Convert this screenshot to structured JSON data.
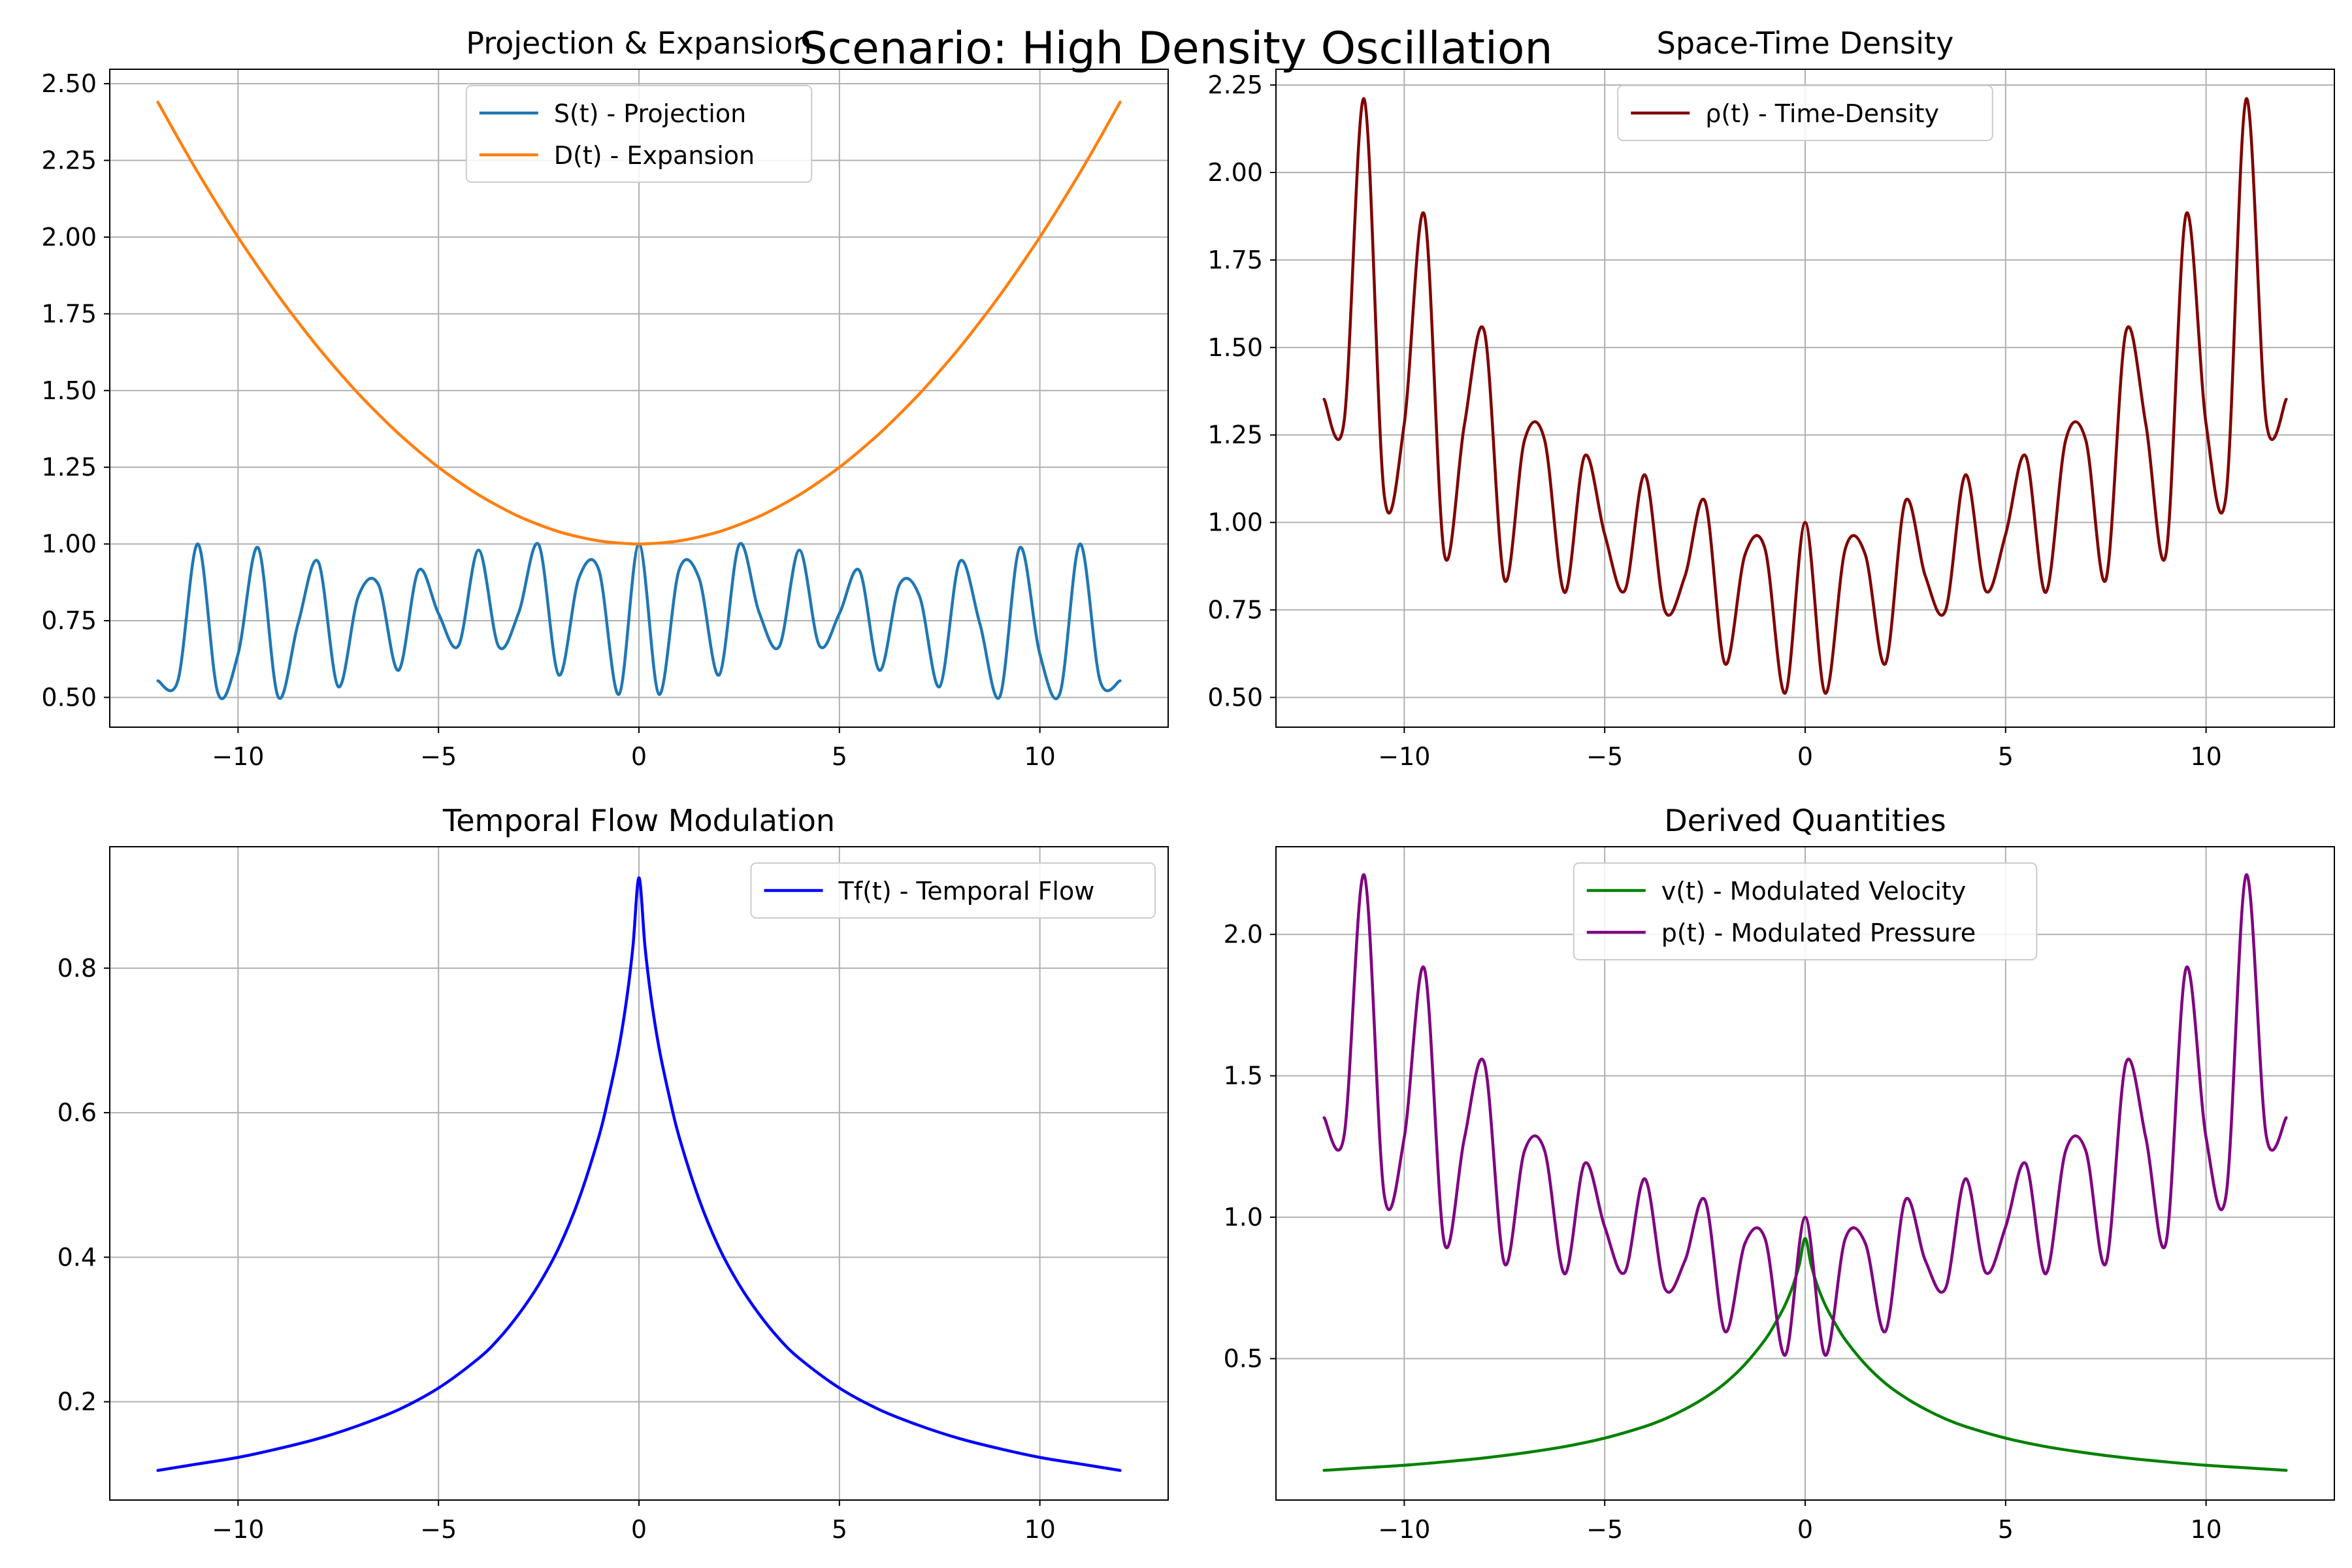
{
  "figure": {
    "suptitle": "Scenario: High Density Oscillation"
  },
  "chart_data": [
    {
      "type": "line",
      "title": "Projection & Expansion",
      "xlabel": "",
      "ylabel": "",
      "xlim": [
        -13.2,
        13.2
      ],
      "ylim": [
        0.403,
        2.547
      ],
      "xticks": [
        -10,
        -5,
        0,
        5,
        10
      ],
      "xtick_labels": [
        "−10",
        "−5",
        "0",
        "5",
        "10"
      ],
      "yticks": [
        0.5,
        0.75,
        1.0,
        1.25,
        1.5,
        1.75,
        2.0,
        2.25,
        2.5
      ],
      "ytick_labels": [
        "0.50",
        "0.75",
        "1.00",
        "1.25",
        "1.50",
        "1.75",
        "2.00",
        "2.25",
        "2.50"
      ],
      "grid": true,
      "legend": "upper center",
      "x_domain": [
        -12,
        12
      ],
      "series": [
        {
          "name": "S(t) - Projection",
          "color": "#1f77b4",
          "x": [
            -12.0,
            -11.5,
            -11.0,
            -10.5,
            -10.0,
            -9.5,
            -9.0,
            -8.5,
            -8.0,
            -7.5,
            -7.0,
            -6.5,
            -6.0,
            -5.5,
            -5.0,
            -4.5,
            -4.0,
            -3.5,
            -3.0,
            -2.5,
            -2.0,
            -1.5,
            -1.0,
            -0.5,
            0.0,
            0.5,
            1.0,
            1.5,
            2.0,
            2.5,
            3.0,
            3.5,
            4.0,
            4.5,
            5.0,
            5.5,
            6.0,
            6.5,
            7.0,
            7.5,
            8.0,
            8.5,
            9.0,
            9.5,
            10.0,
            10.5,
            11.0,
            11.5,
            12.0
          ],
          "values": [
            0.554,
            0.555,
            1.0,
            0.513,
            0.641,
            0.988,
            0.502,
            0.742,
            0.942,
            0.535,
            0.829,
            0.868,
            0.588,
            0.913,
            0.773,
            0.669,
            0.98,
            0.666,
            0.776,
            0.998,
            0.573,
            0.888,
            0.915,
            0.51,
            1.0,
            0.51,
            0.915,
            0.888,
            0.573,
            0.998,
            0.776,
            0.666,
            0.98,
            0.669,
            0.773,
            0.913,
            0.588,
            0.868,
            0.829,
            0.535,
            0.942,
            0.742,
            0.502,
            0.988,
            0.641,
            0.513,
            1.0,
            0.555,
            0.554
          ]
        },
        {
          "name": "D(t) - Expansion",
          "color": "#ff7f0e",
          "x": [
            -12.0,
            -11.5,
            -11.0,
            -10.5,
            -10.0,
            -9.5,
            -9.0,
            -8.5,
            -8.0,
            -7.5,
            -7.0,
            -6.5,
            -6.0,
            -5.5,
            -5.0,
            -4.5,
            -4.0,
            -3.5,
            -3.0,
            -2.5,
            -2.0,
            -1.5,
            -1.0,
            -0.5,
            0.0,
            0.5,
            1.0,
            1.5,
            2.0,
            2.5,
            3.0,
            3.5,
            4.0,
            4.5,
            5.0,
            5.5,
            6.0,
            6.5,
            7.0,
            7.5,
            8.0,
            8.5,
            9.0,
            9.5,
            10.0,
            10.5,
            11.0,
            11.5,
            12.0
          ],
          "values": [
            2.44,
            2.323,
            2.21,
            2.103,
            2.0,
            1.903,
            1.81,
            1.723,
            1.64,
            1.563,
            1.49,
            1.423,
            1.36,
            1.303,
            1.25,
            1.203,
            1.16,
            1.123,
            1.09,
            1.063,
            1.04,
            1.023,
            1.01,
            1.003,
            1.0,
            1.003,
            1.01,
            1.023,
            1.04,
            1.063,
            1.09,
            1.123,
            1.16,
            1.203,
            1.25,
            1.303,
            1.36,
            1.423,
            1.49,
            1.563,
            1.64,
            1.723,
            1.81,
            1.903,
            2.0,
            2.103,
            2.21,
            2.323,
            2.44
          ]
        }
      ]
    },
    {
      "type": "line",
      "title": "Space-Time Density",
      "xlabel": "",
      "ylabel": "",
      "xlim": [
        -13.2,
        13.2
      ],
      "ylim": [
        0.415,
        2.295
      ],
      "xticks": [
        -10,
        -5,
        0,
        5,
        10
      ],
      "xtick_labels": [
        "−10",
        "−5",
        "0",
        "5",
        "10"
      ],
      "yticks": [
        0.5,
        0.75,
        1.0,
        1.25,
        1.5,
        1.75,
        2.0,
        2.25
      ],
      "ytick_labels": [
        "0.50",
        "0.75",
        "1.00",
        "1.25",
        "1.50",
        "1.75",
        "2.00",
        "2.25"
      ],
      "grid": true,
      "legend": "upper center",
      "x_domain": [
        -12,
        12
      ],
      "series": [
        {
          "name": "ρ(t) - Time-Density",
          "color": "#800000",
          "x": [
            -12.0,
            -11.5,
            -11.0,
            -10.5,
            -10.0,
            -9.5,
            -9.0,
            -8.5,
            -8.0,
            -7.5,
            -7.0,
            -6.5,
            -6.0,
            -5.5,
            -5.0,
            -4.5,
            -4.0,
            -3.5,
            -3.0,
            -2.5,
            -2.0,
            -1.5,
            -1.0,
            -0.5,
            0.0,
            0.5,
            1.0,
            1.5,
            2.0,
            2.5,
            3.0,
            3.5,
            4.0,
            4.5,
            5.0,
            5.5,
            6.0,
            6.5,
            7.0,
            7.5,
            8.0,
            8.5,
            9.0,
            9.5,
            10.0,
            10.5,
            11.0,
            11.5,
            12.0
          ],
          "values": [
            1.352,
            1.289,
            2.21,
            1.079,
            1.282,
            1.88,
            0.909,
            1.279,
            1.545,
            0.836,
            1.235,
            1.236,
            0.8,
            1.19,
            0.966,
            0.805,
            1.136,
            0.748,
            0.846,
            1.061,
            0.596,
            0.908,
            0.924,
            0.512,
            1.0,
            0.512,
            0.924,
            0.908,
            0.596,
            1.061,
            0.846,
            0.748,
            1.136,
            0.805,
            0.966,
            1.19,
            0.8,
            1.236,
            1.235,
            0.836,
            1.545,
            1.279,
            0.909,
            1.88,
            1.282,
            1.079,
            2.21,
            1.289,
            1.352
          ]
        }
      ]
    },
    {
      "type": "line",
      "title": "Temporal Flow Modulation",
      "xlabel": "",
      "ylabel": "",
      "xlim": [
        -13.2,
        13.2
      ],
      "ylim": [
        0.064,
        0.968
      ],
      "xticks": [
        -10,
        -5,
        0,
        5,
        10
      ],
      "xtick_labels": [
        "−10",
        "−5",
        "0",
        "5",
        "10"
      ],
      "yticks": [
        0.2,
        0.4,
        0.6,
        0.8
      ],
      "ytick_labels": [
        "0.2",
        "0.4",
        "0.6",
        "0.8"
      ],
      "grid": true,
      "legend": "upper right",
      "x_domain": [
        -12,
        12
      ],
      "series": [
        {
          "name": "Tf(t) - Temporal Flow",
          "color": "#0000ff",
          "x": [
            -12.0,
            -11.0,
            -10.0,
            -9.0,
            -8.0,
            -7.0,
            -6.0,
            -5.0,
            -4.0,
            -3.5,
            -3.0,
            -2.5,
            -2.0,
            -1.5,
            -1.0,
            -0.75,
            -0.5,
            -0.3,
            -0.15,
            0.0,
            0.15,
            0.3,
            0.5,
            0.75,
            1.0,
            1.5,
            2.0,
            2.5,
            3.0,
            3.5,
            4.0,
            5.0,
            6.0,
            7.0,
            8.0,
            9.0,
            10.0,
            11.0,
            12.0
          ],
          "values": [
            0.105,
            0.114,
            0.123,
            0.135,
            0.149,
            0.167,
            0.189,
            0.219,
            0.26,
            0.287,
            0.321,
            0.362,
            0.413,
            0.48,
            0.567,
            0.624,
            0.69,
            0.76,
            0.83,
            0.925,
            0.83,
            0.76,
            0.69,
            0.624,
            0.567,
            0.48,
            0.413,
            0.362,
            0.321,
            0.287,
            0.26,
            0.219,
            0.189,
            0.167,
            0.149,
            0.135,
            0.123,
            0.114,
            0.105
          ]
        }
      ]
    },
    {
      "type": "line",
      "title": "Derived Quantities",
      "xlabel": "",
      "ylabel": "",
      "xlim": [
        -13.2,
        13.2
      ],
      "ylim": [
        0.0,
        2.31
      ],
      "xticks": [
        -10,
        -5,
        0,
        5,
        10
      ],
      "xtick_labels": [
        "−10",
        "−5",
        "0",
        "5",
        "10"
      ],
      "yticks": [
        0.5,
        1.0,
        1.5,
        2.0
      ],
      "ytick_labels": [
        "0.5",
        "1.0",
        "1.5",
        "2.0"
      ],
      "grid": true,
      "legend": "upper center",
      "x_domain": [
        -12,
        12
      ],
      "series": [
        {
          "name": "v(t) - Modulated Velocity",
          "color": "#008000",
          "x": [
            -12.0,
            -11.0,
            -10.0,
            -9.0,
            -8.0,
            -7.0,
            -6.0,
            -5.0,
            -4.0,
            -3.5,
            -3.0,
            -2.5,
            -2.0,
            -1.5,
            -1.0,
            -0.75,
            -0.5,
            -0.3,
            -0.15,
            0.0,
            0.15,
            0.3,
            0.5,
            0.75,
            1.0,
            1.5,
            2.0,
            2.5,
            3.0,
            3.5,
            4.0,
            5.0,
            6.0,
            7.0,
            8.0,
            9.0,
            10.0,
            11.0,
            12.0
          ],
          "values": [
            0.105,
            0.114,
            0.123,
            0.135,
            0.149,
            0.167,
            0.189,
            0.219,
            0.26,
            0.287,
            0.321,
            0.362,
            0.413,
            0.48,
            0.567,
            0.624,
            0.69,
            0.76,
            0.83,
            0.925,
            0.83,
            0.76,
            0.69,
            0.624,
            0.567,
            0.48,
            0.413,
            0.362,
            0.321,
            0.287,
            0.26,
            0.219,
            0.189,
            0.167,
            0.149,
            0.135,
            0.123,
            0.114,
            0.105
          ]
        },
        {
          "name": "p(t) - Modulated Pressure",
          "color": "#800080",
          "x": [
            -12.0,
            -11.5,
            -11.0,
            -10.5,
            -10.0,
            -9.5,
            -9.0,
            -8.5,
            -8.0,
            -7.5,
            -7.0,
            -6.5,
            -6.0,
            -5.5,
            -5.0,
            -4.5,
            -4.0,
            -3.5,
            -3.0,
            -2.5,
            -2.0,
            -1.5,
            -1.0,
            -0.5,
            0.0,
            0.5,
            1.0,
            1.5,
            2.0,
            2.5,
            3.0,
            3.5,
            4.0,
            4.5,
            5.0,
            5.5,
            6.0,
            6.5,
            7.0,
            7.5,
            8.0,
            8.5,
            9.0,
            9.5,
            10.0,
            10.5,
            11.0,
            11.5,
            12.0
          ],
          "values": [
            1.352,
            1.289,
            2.21,
            1.079,
            1.282,
            1.88,
            0.909,
            1.279,
            1.545,
            0.836,
            1.235,
            1.236,
            0.8,
            1.19,
            0.966,
            0.805,
            1.136,
            0.748,
            0.846,
            1.061,
            0.596,
            0.908,
            0.924,
            0.512,
            1.0,
            0.512,
            0.924,
            0.908,
            0.596,
            1.061,
            0.846,
            0.748,
            1.136,
            0.805,
            0.966,
            1.19,
            0.8,
            1.236,
            1.235,
            0.836,
            1.545,
            1.279,
            0.909,
            1.88,
            1.282,
            1.079,
            2.21,
            1.289,
            1.352
          ]
        }
      ]
    }
  ]
}
